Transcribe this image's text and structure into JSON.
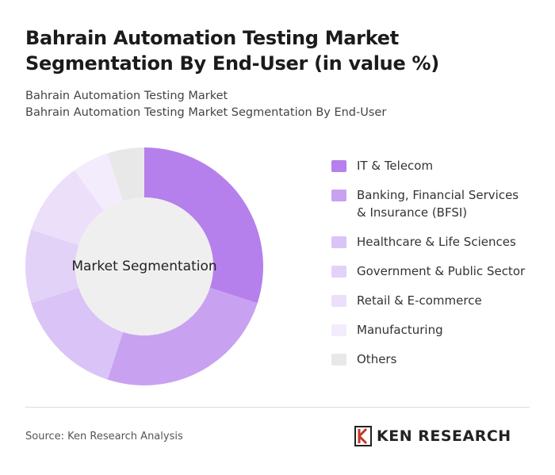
{
  "title": "Bahrain Automation Testing Market Segmentation By End-User (in value %)",
  "subtitle": [
    "Bahrain Automation Testing Market",
    "Bahrain Automation Testing Market Segmentation By End-User"
  ],
  "chart_data": {
    "type": "pie",
    "center_label": "Market Segmentation",
    "categories": [
      "IT & Telecom",
      "Banking, Financial Services & Insurance (BFSI)",
      "Healthcare & Life Sciences",
      "Government & Public Sector",
      "Retail & E-commerce",
      "Manufacturing",
      "Others"
    ],
    "values": [
      30,
      25,
      15,
      10,
      10,
      5,
      5
    ],
    "colors": [
      "#b580ec",
      "#c9a1f1",
      "#dac3f6",
      "#e3d2f8",
      "#ecdffa",
      "#f3ecfc",
      "#e8e8e8"
    ]
  },
  "footer": {
    "source": "Source: Ken Research Analysis",
    "logo": "KEN RESEARCH"
  }
}
